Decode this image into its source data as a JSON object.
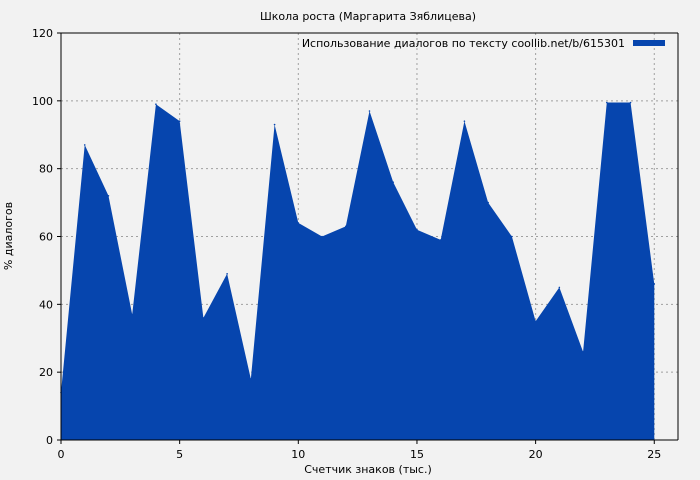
{
  "chart_data": {
    "type": "area",
    "title": "Школа роста (Маргарита Зяблицева)",
    "xlabel": "Счетчик знаков (тыс.)",
    "ylabel": "% диалогов",
    "xlim": [
      0,
      26
    ],
    "ylim": [
      0,
      120
    ],
    "x_ticks": [
      0,
      5,
      10,
      15,
      20,
      25
    ],
    "y_ticks": [
      0,
      20,
      40,
      60,
      80,
      100,
      120
    ],
    "grid": true,
    "legend_position": "top-right",
    "colors": {
      "series": "#0645ae",
      "background": "#f2f2f2",
      "grid": "#a0a0a0"
    },
    "series": [
      {
        "name": "Использование диалогов по тексту coollib.net/b/615301",
        "x": [
          0,
          1,
          2,
          3,
          4,
          5,
          6,
          7,
          8,
          9,
          10,
          11,
          12,
          13,
          14,
          15,
          16,
          17,
          18,
          19,
          20,
          21,
          22,
          23,
          24,
          25
        ],
        "values": [
          14,
          87,
          72,
          37,
          99,
          94,
          36,
          49,
          18,
          93,
          64,
          60,
          63,
          97,
          76,
          62,
          59,
          94,
          70,
          60,
          35,
          45,
          26,
          99.5,
          99.5,
          46
        ]
      }
    ]
  }
}
